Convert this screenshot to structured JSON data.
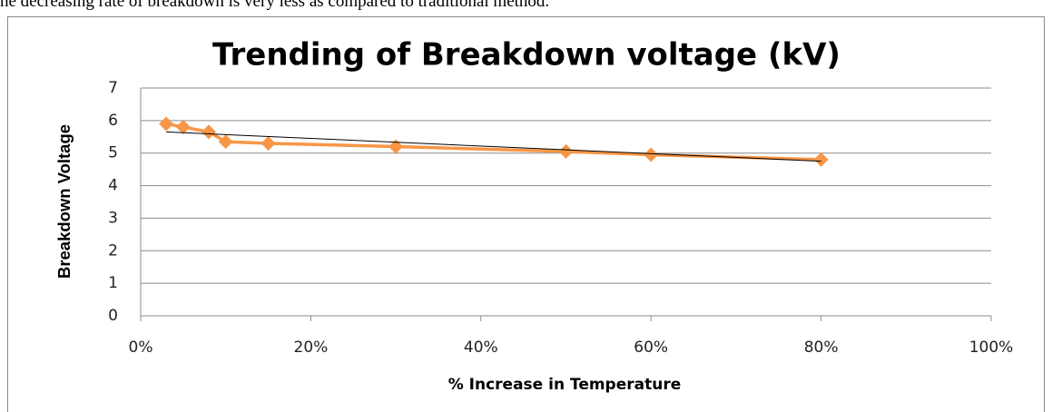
{
  "header_text": "he decreasing rate of breakdown is very less as compared to traditional method.",
  "chart_data": {
    "type": "line",
    "title": "Trending of Breakdown voltage (kV)",
    "x_label": "% Increase in Temperature",
    "y_label": "Breakdown Voltage",
    "x": [
      3,
      5,
      8,
      10,
      15,
      30,
      50,
      60,
      80
    ],
    "series": [
      {
        "name": "Breakdown voltage (kV)",
        "color": "#f79646",
        "values": [
          5.9,
          5.8,
          5.65,
          5.35,
          5.3,
          5.2,
          5.05,
          4.95,
          4.8
        ]
      }
    ],
    "trendline": {
      "color": "#000000",
      "x": [
        3,
        80
      ],
      "values": [
        5.65,
        4.75
      ]
    },
    "xlim": [
      0,
      100
    ],
    "xticks": [
      {
        "value": 0,
        "label": "0%"
      },
      {
        "value": 20,
        "label": "20%"
      },
      {
        "value": 40,
        "label": "40%"
      },
      {
        "value": 60,
        "label": "60%"
      },
      {
        "value": 80,
        "label": "80%"
      },
      {
        "value": 100,
        "label": "100%"
      }
    ],
    "ylim": [
      0,
      7
    ],
    "yticks": [
      0,
      1,
      2,
      3,
      4,
      5,
      6,
      7
    ],
    "grid": true
  }
}
